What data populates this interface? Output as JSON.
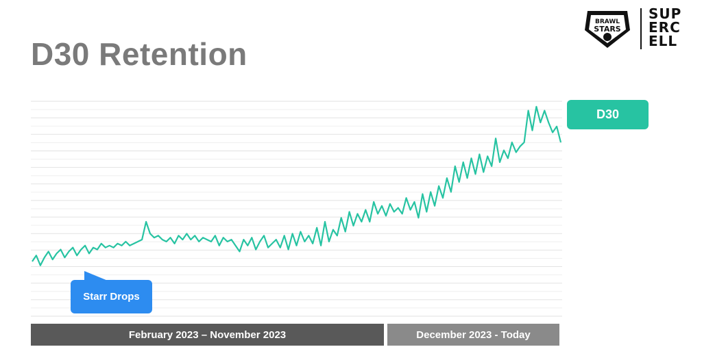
{
  "title": "D30 Retention",
  "logos": {
    "brawl_stars": "BRAWL STARS",
    "supercell": [
      "SUP",
      "ERC",
      "ELL"
    ]
  },
  "legend": {
    "label": "D30",
    "color": "#27c3a2"
  },
  "annotation": {
    "label": "Starr Drops",
    "color": "#2d8cf0"
  },
  "periods": [
    {
      "label": "February 2023 – November 2023",
      "color": "#595959"
    },
    {
      "label": "December 2023 - Today",
      "color": "#8a8a8a"
    }
  ],
  "chart_data": {
    "type": "line",
    "title": "D30 Retention",
    "xlabel": "",
    "ylabel": "",
    "grid": true,
    "ylim": [
      0,
      100
    ],
    "series": [
      {
        "name": "D30",
        "color": "#27c3a2",
        "values": [
          20,
          23,
          18,
          22,
          25,
          21,
          24,
          26,
          22,
          25,
          27,
          23,
          26,
          28,
          24,
          27,
          26,
          29,
          27,
          28,
          27,
          29,
          28,
          30,
          28,
          29,
          30,
          31,
          40,
          34,
          32,
          33,
          31,
          30,
          32,
          29,
          33,
          31,
          34,
          31,
          33,
          30,
          32,
          31,
          30,
          33,
          28,
          32,
          30,
          31,
          28,
          25,
          31,
          28,
          32,
          26,
          30,
          33,
          27,
          29,
          31,
          27,
          33,
          26,
          34,
          28,
          35,
          30,
          33,
          29,
          37,
          28,
          40,
          30,
          36,
          33,
          42,
          35,
          45,
          38,
          44,
          40,
          46,
          40,
          50,
          44,
          48,
          43,
          49,
          45,
          47,
          44,
          52,
          46,
          50,
          42,
          54,
          45,
          55,
          48,
          58,
          52,
          62,
          55,
          68,
          60,
          70,
          62,
          72,
          64,
          74,
          65,
          73,
          68,
          82,
          70,
          76,
          72,
          80,
          75,
          78,
          80,
          96,
          86,
          98,
          90,
          96,
          90,
          85,
          88,
          80
        ]
      }
    ]
  }
}
